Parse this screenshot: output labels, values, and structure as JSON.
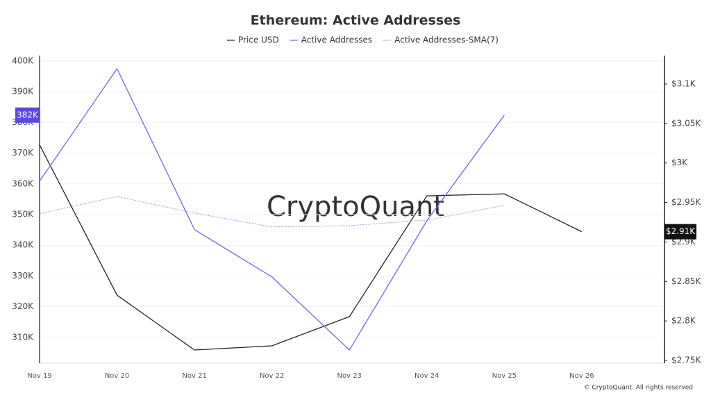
{
  "chart_data": {
    "type": "line",
    "title": "Ethereum: Active Addresses",
    "watermark": "CryptoQuant",
    "footer": "© CryptoQuant. All rights reserved",
    "categories": [
      "Nov 19",
      "Nov 20",
      "Nov 21",
      "Nov 22",
      "Nov 23",
      "Nov 24",
      "Nov 25",
      "Nov 26"
    ],
    "grid": true,
    "ylim": [
      301600,
      401800
    ],
    "yticks": [
      {
        "value": 310000,
        "label": "310K"
      },
      {
        "value": 320000,
        "label": "320K"
      },
      {
        "value": 330000,
        "label": "330K"
      },
      {
        "value": 340000,
        "label": "340K"
      },
      {
        "value": 350000,
        "label": "350K"
      },
      {
        "value": 360000,
        "label": "360K"
      },
      {
        "value": 370000,
        "label": "370K"
      },
      {
        "value": 380000,
        "label": "380K"
      },
      {
        "value": 390000,
        "label": "390K"
      },
      {
        "value": 400000,
        "label": "400K"
      }
    ],
    "y2lim": [
      2746.5,
      3136
    ],
    "y2ticks": [
      {
        "value": 2750,
        "label": "$2.75K"
      },
      {
        "value": 2800,
        "label": "$2.8K"
      },
      {
        "value": 2850,
        "label": "$2.85K"
      },
      {
        "value": 2900,
        "label": "$2.9K"
      },
      {
        "value": 2950,
        "label": "$2.95K"
      },
      {
        "value": 3000,
        "label": "$3K"
      },
      {
        "value": 3050,
        "label": "$3.05K"
      },
      {
        "value": 3100,
        "label": "$3.1K"
      }
    ],
    "series": [
      {
        "name": "Price USD",
        "color": "#222222",
        "axis": "y2",
        "style": "solid",
        "values": [
          3023,
          2832.6,
          2763.2,
          2768.5,
          2805.4,
          2958.3,
          2960.9,
          2913
        ],
        "value_labels": [
          null,
          null,
          null,
          null,
          null,
          null,
          null,
          "$2.91K"
        ]
      },
      {
        "name": "Active Addresses",
        "color": "#7466e0",
        "style": "solid",
        "values": [
          360900,
          397500,
          345100,
          329700,
          305900,
          348000,
          382400,
          null
        ],
        "value_labels": [
          null,
          null,
          null,
          null,
          null,
          null,
          "382K",
          null
        ]
      },
      {
        "name": "Active Addresses-SMA(7)",
        "color": "#9d93ea",
        "style": "dotted",
        "values": [
          350300,
          355900,
          350500,
          346000,
          346400,
          348200,
          353000,
          null
        ]
      }
    ]
  }
}
